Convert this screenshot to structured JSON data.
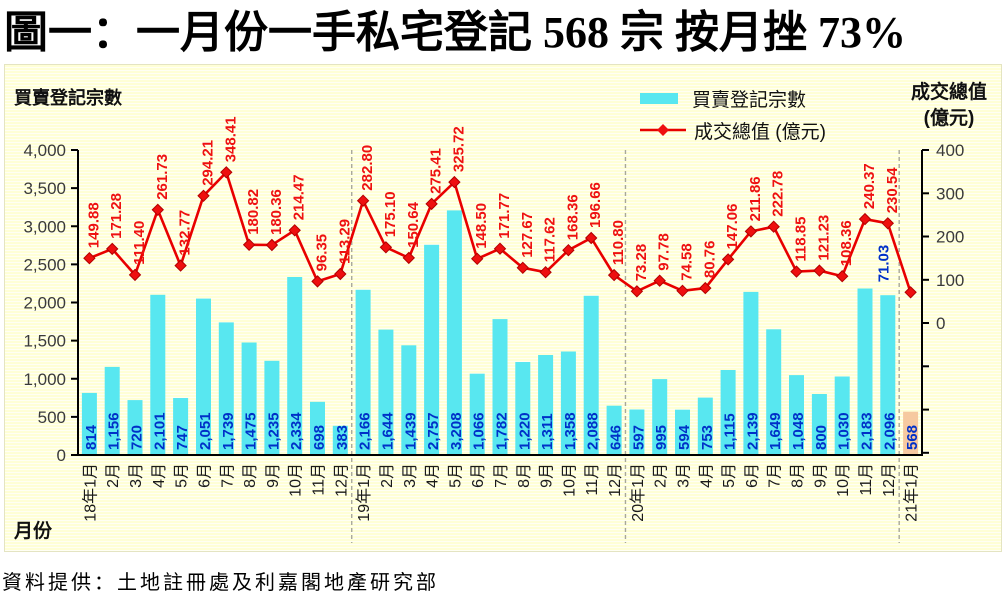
{
  "title": "圖一：一月份一手私宅登記 568 宗  按月挫 73%",
  "source": "資料提供：土地註冊處及利嘉閣地產研究部",
  "panel": {
    "left_axis_title": "買賣登記宗數",
    "right_axis_title_line1": "成交總值",
    "right_axis_title_line2": "(億元)",
    "x_axis_title": "月份"
  },
  "legend": {
    "bar_label": "買賣登記宗數",
    "line_label": "成交總值 (億元)"
  },
  "colors": {
    "bar": "#58e7f0",
    "bar_highlight": "#f6c9a0",
    "line": "#e80000",
    "marker": "#ee0f0f",
    "bar_value_label": "#0030c8",
    "line_value_label": "#ee1111",
    "line_value_label_last": "#0030c8",
    "axis_text": "#3a3a3a",
    "x_label_text": "#1a1a1a",
    "axis_line": "#000000",
    "separator": "#a8a89a"
  },
  "chart_data": {
    "type": "bar-line-combo",
    "categories": [
      "18年1月",
      "2月",
      "3月",
      "4月",
      "5月",
      "6月",
      "7月",
      "8月",
      "9月",
      "10月",
      "11月",
      "12月",
      "19年1月",
      "2月",
      "3月",
      "4月",
      "5月",
      "6月",
      "7月",
      "8月",
      "9月",
      "10月",
      "11月",
      "12月",
      "20年1月",
      "2月",
      "3月",
      "4月",
      "5月",
      "6月",
      "7月",
      "8月",
      "9月",
      "10月",
      "11月",
      "12月",
      "21年1月"
    ],
    "series": [
      {
        "name": "買賣登記宗數",
        "type": "bar",
        "axis": "left",
        "values": [
          814,
          1156,
          720,
          2101,
          747,
          2051,
          1739,
          1475,
          1235,
          2334,
          698,
          383,
          2166,
          1644,
          1439,
          2757,
          3208,
          1066,
          1782,
          1220,
          1311,
          1358,
          2088,
          646,
          597,
          995,
          594,
          753,
          1115,
          2139,
          1649,
          1048,
          800,
          1030,
          2183,
          2096,
          568
        ],
        "labels": [
          "814",
          "1,156",
          "720",
          "2,101",
          "747",
          "2,051",
          "1,739",
          "1,475",
          "1,235",
          "2,334",
          "698",
          "383",
          "2,166",
          "1,644",
          "1,439",
          "2,757",
          "3,208",
          "1,066",
          "1,782",
          "1,220",
          "1,311",
          "1,358",
          "2,088",
          "646",
          "597",
          "995",
          "594",
          "753",
          "1,115",
          "2,139",
          "1,649",
          "1,048",
          "800",
          "1,030",
          "2,183",
          "2,096",
          "568"
        ]
      },
      {
        "name": "成交總值 (億元)",
        "type": "line",
        "axis": "right",
        "values": [
          149.88,
          171.28,
          111.4,
          261.73,
          132.77,
          294.21,
          348.41,
          180.82,
          180.36,
          214.47,
          96.35,
          113.29,
          282.8,
          175.1,
          150.64,
          275.41,
          325.72,
          148.5,
          171.77,
          127.67,
          117.62,
          168.36,
          196.66,
          110.8,
          73.28,
          97.78,
          74.58,
          80.76,
          147.06,
          211.86,
          222.78,
          118.85,
          121.23,
          108.36,
          240.37,
          230.54,
          71.03
        ],
        "labels": [
          "149.88",
          "171.28",
          "111.40",
          "261.73",
          "132.77",
          "294.21",
          "348.41",
          "180.82",
          "180.36",
          "214.47",
          "96.35",
          "113.29",
          "282.80",
          "175.10",
          "150.64",
          "275.41",
          "325.72",
          "148.50",
          "171.77",
          "127.67",
          "117.62",
          "168.36",
          "196.66",
          "110.80",
          "73.28",
          "97.78",
          "74.58",
          "80.76",
          "147.06",
          "211.86",
          "222.78",
          "118.85",
          "121.23",
          "108.36",
          "240.37",
          "230.54",
          "71.03"
        ]
      }
    ],
    "left_axis": {
      "min": 0,
      "max": 4000,
      "tick_step": 500,
      "tick_labels": [
        "4,000",
        "3,500",
        "3,000",
        "2,500",
        "2,000",
        "1,500",
        "1,000",
        "500",
        "0"
      ]
    },
    "right_axis": {
      "labeled_tick_labels": [
        "400",
        "300",
        "200",
        "100",
        "0"
      ],
      "labeled_ticks": [
        400,
        300,
        200,
        100,
        0
      ],
      "max": 400,
      "display_min": -305,
      "tick_step": 100
    },
    "separators_after_index": [
      11,
      23,
      35
    ],
    "highlight_last_bar": true,
    "grid": false,
    "legend_position": "top-right"
  }
}
